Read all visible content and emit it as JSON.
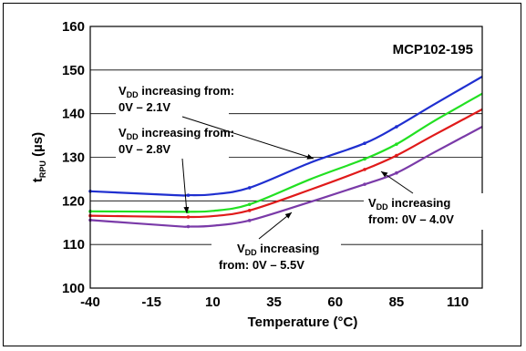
{
  "chart_data": {
    "type": "line",
    "title": "MCP102-195",
    "xlabel": "Temperature (°C)",
    "ylabel": {
      "main": "t",
      "sub": "RPU",
      "unit": " (µs)"
    },
    "xlim": [
      -40,
      120
    ],
    "ylim": [
      100,
      160
    ],
    "xticks": [
      -40,
      -15,
      10,
      35,
      60,
      85,
      110
    ],
    "yticks": [
      100,
      110,
      120,
      130,
      140,
      150,
      160
    ],
    "grid": "horizontal",
    "series": [
      {
        "name": "VDD increasing from: 0V – 2.1V",
        "color": "#1f2fd0",
        "points": [
          [
            -40,
            122.2
          ],
          [
            -5,
            121.3
          ],
          [
            0,
            121.3
          ],
          [
            10,
            121.5
          ],
          [
            25,
            123.0
          ],
          [
            50,
            128.8
          ],
          [
            72,
            133.2
          ],
          [
            85,
            137.0
          ],
          [
            100,
            142.0
          ],
          [
            120,
            148.5
          ]
        ]
      },
      {
        "name": "VDD increasing from: 0V – 2.8V",
        "color": "#22e022",
        "points": [
          [
            -40,
            117.6
          ],
          [
            -5,
            117.5
          ],
          [
            0,
            117.5
          ],
          [
            10,
            117.7
          ],
          [
            25,
            119.2
          ],
          [
            50,
            125.0
          ],
          [
            72,
            129.6
          ],
          [
            85,
            133.0
          ],
          [
            100,
            138.2
          ],
          [
            120,
            144.6
          ]
        ]
      },
      {
        "name": "VDD increasing from: 0V – 4.0V",
        "color": "#e01a1a",
        "points": [
          [
            -40,
            116.6
          ],
          [
            -5,
            116.3
          ],
          [
            0,
            116.3
          ],
          [
            10,
            116.5
          ],
          [
            25,
            117.8
          ],
          [
            50,
            122.6
          ],
          [
            72,
            127.2
          ],
          [
            85,
            130.4
          ],
          [
            100,
            135.0
          ],
          [
            120,
            141.0
          ]
        ]
      },
      {
        "name": "VDD increasing from: 0V – 5.5V",
        "color": "#7a3aa8",
        "points": [
          [
            -40,
            115.6
          ],
          [
            -5,
            114.2
          ],
          [
            0,
            114.1
          ],
          [
            10,
            114.3
          ],
          [
            25,
            115.5
          ],
          [
            50,
            119.8
          ],
          [
            72,
            123.8
          ],
          [
            85,
            126.4
          ],
          [
            100,
            131.0
          ],
          [
            120,
            137.0
          ]
        ]
      }
    ],
    "annotations": [
      {
        "main": "V",
        "sub": "DD",
        "rest": " increasing from:",
        "line2": "0V – 2.1V"
      },
      {
        "main": "V",
        "sub": "DD",
        "rest": " increasing from:",
        "line2": "0V – 2.8V"
      },
      {
        "main": "V",
        "sub": "DD",
        "rest": " increasing",
        "line2": "from:  0V – 4.0V"
      },
      {
        "main": "V",
        "sub": "DD",
        "rest": " increasing",
        "line2": "from: 0V – 5.5V"
      }
    ]
  }
}
